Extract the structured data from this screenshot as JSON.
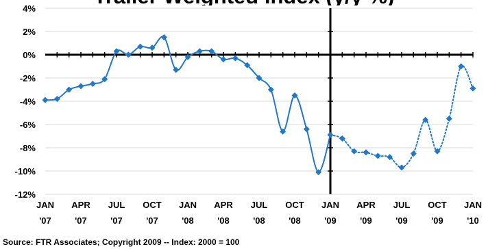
{
  "chart_data": {
    "type": "line",
    "title": "Trailer Weighted Index (y/y %)",
    "source": "Source: FTR Associates;  Copyright 2009 -- Index: 2000 = 100",
    "ylim": [
      -12,
      4
    ],
    "y_ticks": [
      "4%",
      "2%",
      "0%",
      "-2%",
      "-4%",
      "-6%",
      "-8%",
      "-10%",
      "-12%"
    ],
    "x_tick_labels": [
      [
        "JAN",
        "'07"
      ],
      [
        "APR",
        "'07"
      ],
      [
        "JUL",
        "'07"
      ],
      [
        "OCT",
        "'07"
      ],
      [
        "JAN",
        "'08"
      ],
      [
        "APR",
        "'08"
      ],
      [
        "JUL",
        "'08"
      ],
      [
        "OCT",
        "'08"
      ],
      [
        "JAN",
        "'09"
      ],
      [
        "APR",
        "'09"
      ],
      [
        "JUL",
        "'09"
      ],
      [
        "OCT",
        "'09"
      ],
      [
        "JAN",
        "'10"
      ]
    ],
    "grid": true,
    "colors": {
      "line": "#1F78C8",
      "grid": "#D9D9D9",
      "axis": "#000000"
    },
    "series": [
      {
        "style": "solid",
        "values": [
          [
            "Jan 2007",
            -3.9
          ],
          [
            "Feb 2007",
            -3.8
          ],
          [
            "Mar 2007",
            -3.0
          ],
          [
            "Apr 2007",
            -2.7
          ],
          [
            "May 2007",
            -2.5
          ],
          [
            "Jun 2007",
            -2.1
          ],
          [
            "Jul 2007",
            0.3
          ],
          [
            "Aug 2007",
            0.0
          ],
          [
            "Sep 2007",
            0.7
          ],
          [
            "Oct 2007",
            0.6
          ],
          [
            "Nov 2007",
            1.5
          ],
          [
            "Dec 2007",
            -1.3
          ],
          [
            "Jan 2008",
            -0.2
          ],
          [
            "Feb 2008",
            0.3
          ],
          [
            "Mar 2008",
            0.3
          ],
          [
            "Apr 2008",
            -0.4
          ],
          [
            "May 2008",
            -0.3
          ],
          [
            "Jun 2008",
            -0.9
          ],
          [
            "Jul 2008",
            -2.0
          ],
          [
            "Aug 2008",
            -3.0
          ],
          [
            "Sep 2008",
            -6.6
          ],
          [
            "Oct 2008",
            -3.5
          ],
          [
            "Nov 2008",
            -6.4
          ],
          [
            "Dec 2008",
            -10.1
          ],
          [
            "Jan 2009",
            -6.9
          ]
        ]
      },
      {
        "style": "dotted",
        "values": [
          [
            "Jan 2009",
            -6.9
          ],
          [
            "Feb 2009",
            -7.2
          ],
          [
            "Mar 2009",
            -8.3
          ],
          [
            "Apr 2009",
            -8.4
          ],
          [
            "May 2009",
            -8.7
          ],
          [
            "Jun 2009",
            -8.8
          ],
          [
            "Jul 2009",
            -9.7
          ],
          [
            "Aug 2009",
            -8.5
          ],
          [
            "Sep 2009",
            -5.6
          ],
          [
            "Oct 2009",
            -8.3
          ],
          [
            "Nov 2009",
            -5.5
          ],
          [
            "Dec 2009",
            -1.0
          ],
          [
            "Jan 2010",
            -2.9
          ]
        ]
      }
    ]
  }
}
